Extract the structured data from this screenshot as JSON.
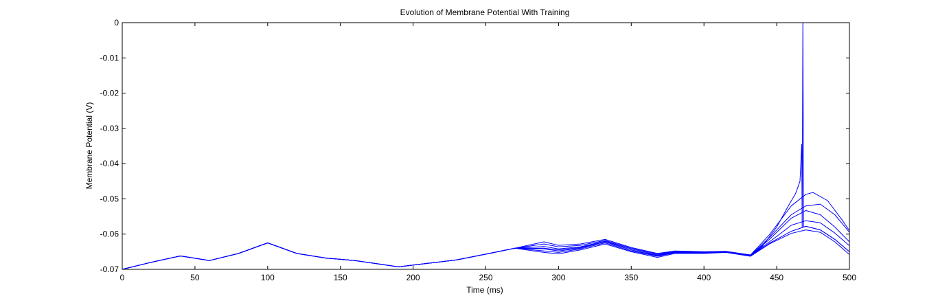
{
  "chart_data": {
    "type": "line",
    "title": "Evolution of Membrane Potential With Training",
    "xlabel": "Time (ms)",
    "ylabel": "Membrane Potential (V)",
    "xlim": [
      0,
      500
    ],
    "ylim": [
      -0.07,
      0
    ],
    "xticks": [
      0,
      50,
      100,
      150,
      200,
      250,
      300,
      350,
      400,
      450,
      500
    ],
    "yticks": [
      0,
      -0.01,
      -0.02,
      -0.03,
      -0.04,
      -0.05,
      -0.06,
      -0.07
    ],
    "xtick_labels": [
      "0",
      "50",
      "100",
      "150",
      "200",
      "250",
      "300",
      "350",
      "400",
      "450",
      "500"
    ],
    "ytick_labels": [
      "0",
      "-0.01",
      "-0.02",
      "-0.03",
      "-0.04",
      "-0.05",
      "-0.06",
      "-0.07"
    ],
    "grid": false,
    "line_color": "#0000ff",
    "series": [
      {
        "values": [
          [
            0,
            -0.07
          ],
          [
            20,
            -0.068
          ],
          [
            40,
            -0.0662
          ],
          [
            60,
            -0.0675
          ],
          [
            80,
            -0.0655
          ],
          [
            100,
            -0.0625
          ],
          [
            120,
            -0.0655
          ],
          [
            140,
            -0.0668
          ],
          [
            160,
            -0.0675
          ],
          [
            190,
            -0.0693
          ],
          [
            210,
            -0.0683
          ],
          [
            230,
            -0.0673
          ],
          [
            250,
            -0.0657
          ],
          [
            270,
            -0.064
          ],
          [
            290,
            -0.0652
          ],
          [
            300,
            -0.0656
          ],
          [
            315,
            -0.0645
          ],
          [
            332,
            -0.0628
          ],
          [
            350,
            -0.065
          ],
          [
            368,
            -0.0666
          ],
          [
            380,
            -0.0655
          ],
          [
            400,
            -0.0655
          ],
          [
            415,
            -0.0652
          ],
          [
            432,
            -0.0663
          ],
          [
            445,
            -0.0628
          ],
          [
            460,
            -0.0598
          ],
          [
            470,
            -0.0588
          ],
          [
            480,
            -0.0595
          ],
          [
            490,
            -0.0622
          ],
          [
            500,
            -0.0658
          ]
        ]
      },
      {
        "values": [
          [
            0,
            -0.07
          ],
          [
            20,
            -0.068
          ],
          [
            40,
            -0.0662
          ],
          [
            60,
            -0.0675
          ],
          [
            80,
            -0.0655
          ],
          [
            100,
            -0.0625
          ],
          [
            120,
            -0.0655
          ],
          [
            140,
            -0.0668
          ],
          [
            160,
            -0.0675
          ],
          [
            190,
            -0.0693
          ],
          [
            210,
            -0.0683
          ],
          [
            230,
            -0.0673
          ],
          [
            250,
            -0.0657
          ],
          [
            270,
            -0.064
          ],
          [
            290,
            -0.0648
          ],
          [
            300,
            -0.0652
          ],
          [
            315,
            -0.0642
          ],
          [
            332,
            -0.0625
          ],
          [
            350,
            -0.0648
          ],
          [
            368,
            -0.0663
          ],
          [
            380,
            -0.0653
          ],
          [
            400,
            -0.0654
          ],
          [
            415,
            -0.0651
          ],
          [
            432,
            -0.0662
          ],
          [
            445,
            -0.0626
          ],
          [
            460,
            -0.0592
          ],
          [
            470,
            -0.0578
          ],
          [
            480,
            -0.0588
          ],
          [
            490,
            -0.0615
          ],
          [
            500,
            -0.065
          ]
        ]
      },
      {
        "values": [
          [
            0,
            -0.07
          ],
          [
            20,
            -0.068
          ],
          [
            40,
            -0.0662
          ],
          [
            60,
            -0.0675
          ],
          [
            80,
            -0.0655
          ],
          [
            100,
            -0.0625
          ],
          [
            120,
            -0.0655
          ],
          [
            140,
            -0.0668
          ],
          [
            160,
            -0.0675
          ],
          [
            190,
            -0.0693
          ],
          [
            210,
            -0.0683
          ],
          [
            230,
            -0.0673
          ],
          [
            250,
            -0.0657
          ],
          [
            270,
            -0.064
          ],
          [
            290,
            -0.0642
          ],
          [
            300,
            -0.0648
          ],
          [
            315,
            -0.064
          ],
          [
            332,
            -0.0622
          ],
          [
            350,
            -0.0645
          ],
          [
            368,
            -0.0661
          ],
          [
            380,
            -0.0651
          ],
          [
            400,
            -0.0653
          ],
          [
            415,
            -0.065
          ],
          [
            432,
            -0.0661
          ],
          [
            445,
            -0.0622
          ],
          [
            460,
            -0.0575
          ],
          [
            470,
            -0.0562
          ],
          [
            480,
            -0.0568
          ],
          [
            490,
            -0.0597
          ],
          [
            500,
            -0.0633
          ]
        ]
      },
      {
        "values": [
          [
            0,
            -0.07
          ],
          [
            20,
            -0.068
          ],
          [
            40,
            -0.0662
          ],
          [
            60,
            -0.0675
          ],
          [
            80,
            -0.0655
          ],
          [
            100,
            -0.0625
          ],
          [
            120,
            -0.0655
          ],
          [
            140,
            -0.0668
          ],
          [
            160,
            -0.0675
          ],
          [
            190,
            -0.0693
          ],
          [
            210,
            -0.0683
          ],
          [
            230,
            -0.0673
          ],
          [
            250,
            -0.0657
          ],
          [
            270,
            -0.064
          ],
          [
            290,
            -0.0635
          ],
          [
            300,
            -0.0642
          ],
          [
            315,
            -0.0636
          ],
          [
            332,
            -0.062
          ],
          [
            350,
            -0.0642
          ],
          [
            368,
            -0.0659
          ],
          [
            380,
            -0.065
          ],
          [
            400,
            -0.0652
          ],
          [
            415,
            -0.065
          ],
          [
            432,
            -0.066
          ],
          [
            445,
            -0.0615
          ],
          [
            460,
            -0.0555
          ],
          [
            470,
            -0.0533
          ],
          [
            480,
            -0.0545
          ],
          [
            490,
            -0.058
          ],
          [
            500,
            -0.0622
          ]
        ]
      },
      {
        "values": [
          [
            0,
            -0.07
          ],
          [
            20,
            -0.068
          ],
          [
            40,
            -0.0662
          ],
          [
            60,
            -0.0675
          ],
          [
            80,
            -0.0655
          ],
          [
            100,
            -0.0625
          ],
          [
            120,
            -0.0655
          ],
          [
            140,
            -0.0668
          ],
          [
            160,
            -0.0675
          ],
          [
            190,
            -0.0693
          ],
          [
            210,
            -0.0683
          ],
          [
            230,
            -0.0673
          ],
          [
            250,
            -0.0657
          ],
          [
            270,
            -0.064
          ],
          [
            290,
            -0.0628
          ],
          [
            300,
            -0.0636
          ],
          [
            315,
            -0.0632
          ],
          [
            332,
            -0.0618
          ],
          [
            350,
            -0.064
          ],
          [
            368,
            -0.0657
          ],
          [
            380,
            -0.0649
          ],
          [
            400,
            -0.0651
          ],
          [
            415,
            -0.065
          ],
          [
            432,
            -0.066
          ],
          [
            445,
            -0.061
          ],
          [
            460,
            -0.0545
          ],
          [
            470,
            -0.052
          ],
          [
            480,
            -0.0515
          ],
          [
            490,
            -0.0545
          ],
          [
            500,
            -0.0595
          ]
        ]
      },
      {
        "values": [
          [
            0,
            -0.07
          ],
          [
            20,
            -0.068
          ],
          [
            40,
            -0.0662
          ],
          [
            60,
            -0.0675
          ],
          [
            80,
            -0.0655
          ],
          [
            100,
            -0.0625
          ],
          [
            120,
            -0.0655
          ],
          [
            140,
            -0.0668
          ],
          [
            160,
            -0.0675
          ],
          [
            190,
            -0.0693
          ],
          [
            210,
            -0.0683
          ],
          [
            230,
            -0.0673
          ],
          [
            250,
            -0.0657
          ],
          [
            270,
            -0.064
          ],
          [
            290,
            -0.0622
          ],
          [
            300,
            -0.0632
          ],
          [
            315,
            -0.0628
          ],
          [
            332,
            -0.0615
          ],
          [
            350,
            -0.0638
          ],
          [
            368,
            -0.0655
          ],
          [
            380,
            -0.0648
          ],
          [
            400,
            -0.065
          ],
          [
            415,
            -0.0649
          ],
          [
            432,
            -0.0659
          ],
          [
            445,
            -0.0602
          ],
          [
            460,
            -0.052
          ],
          [
            470,
            -0.0487
          ],
          [
            475,
            -0.0482
          ],
          [
            485,
            -0.0505
          ],
          [
            495,
            -0.056
          ],
          [
            500,
            -0.059
          ]
        ]
      },
      {
        "values": [
          [
            0,
            -0.07
          ],
          [
            20,
            -0.068
          ],
          [
            40,
            -0.0662
          ],
          [
            60,
            -0.0675
          ],
          [
            80,
            -0.0655
          ],
          [
            100,
            -0.0625
          ],
          [
            120,
            -0.0655
          ],
          [
            140,
            -0.0668
          ],
          [
            160,
            -0.0675
          ],
          [
            190,
            -0.0693
          ],
          [
            210,
            -0.0683
          ],
          [
            230,
            -0.0673
          ],
          [
            250,
            -0.0657
          ],
          [
            270,
            -0.064
          ],
          [
            290,
            -0.064
          ],
          [
            300,
            -0.0645
          ],
          [
            315,
            -0.0638
          ],
          [
            332,
            -0.0622
          ],
          [
            350,
            -0.0645
          ],
          [
            368,
            -0.0662
          ],
          [
            380,
            -0.0652
          ],
          [
            400,
            -0.0653
          ],
          [
            415,
            -0.0651
          ],
          [
            432,
            -0.0661
          ],
          [
            440,
            -0.0635
          ],
          [
            450,
            -0.058
          ],
          [
            458,
            -0.052
          ],
          [
            463,
            -0.0485
          ],
          [
            466,
            -0.045
          ],
          [
            467.2,
            -0.0345
          ],
          [
            467.5,
            -0.058
          ],
          [
            468,
            -0.0
          ],
          [
            468.5,
            -0.058
          ],
          [
            470,
            -0.0578
          ],
          [
            480,
            -0.0588
          ],
          [
            490,
            -0.0615
          ],
          [
            500,
            -0.065
          ]
        ]
      }
    ]
  }
}
